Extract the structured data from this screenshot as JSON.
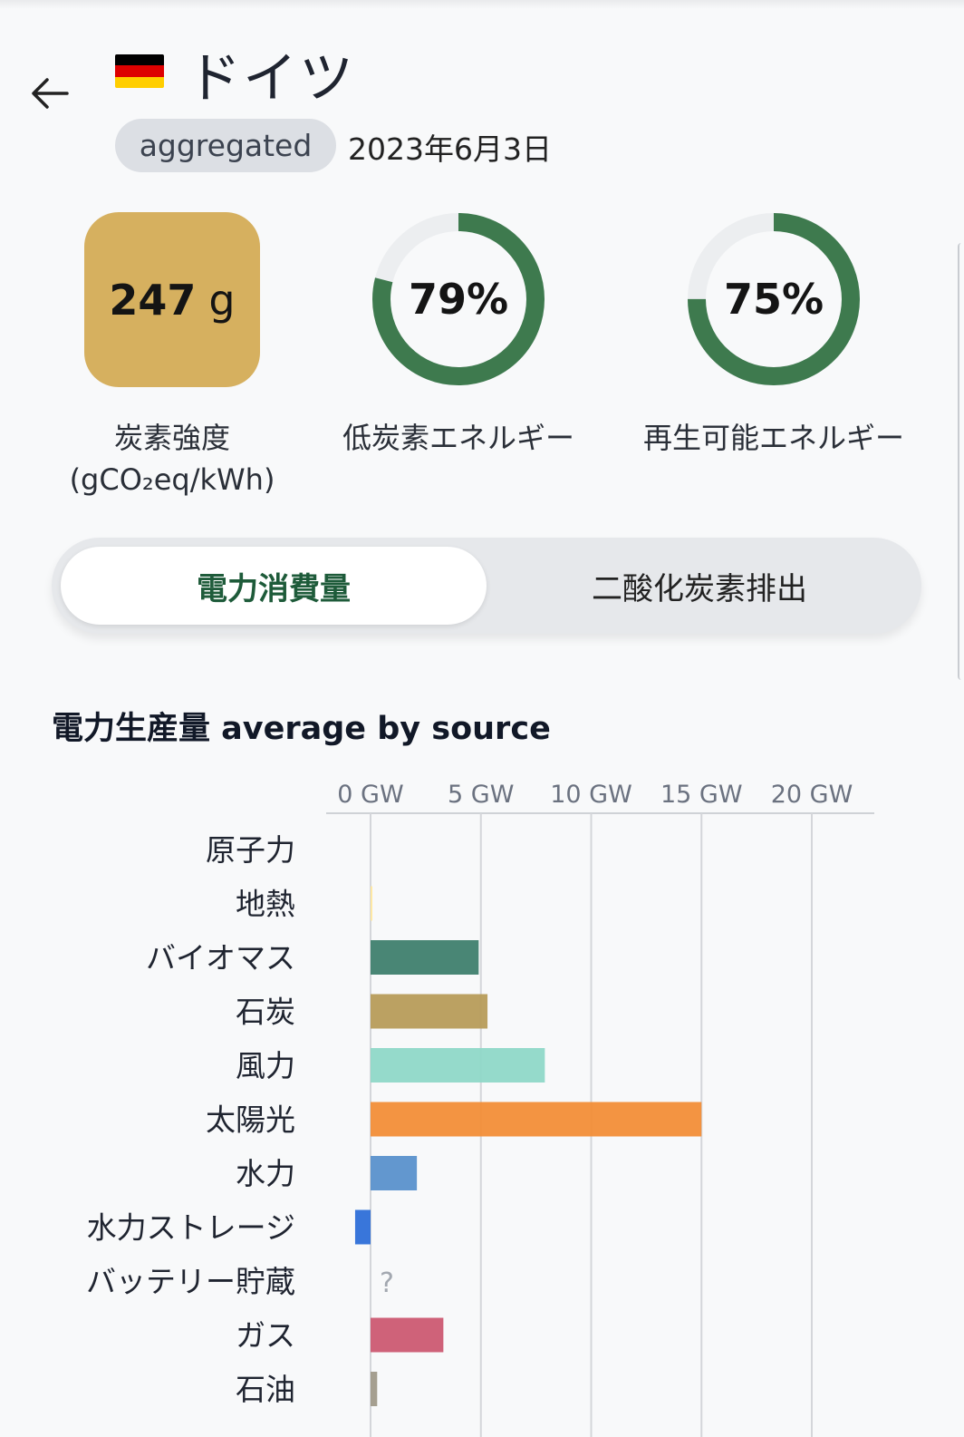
{
  "header": {
    "back_icon": "arrow-left-icon",
    "country": "ドイツ",
    "flag": {
      "icon": "germany-flag-icon",
      "colors": [
        "#000000",
        "#dd0000",
        "#ffce00"
      ]
    },
    "badge": "aggregated",
    "date": "2023年6月3日"
  },
  "metrics": {
    "carbon_intensity": {
      "value": "247",
      "unit": "g",
      "label": "炭素強度",
      "sublabel": "(gCO₂eq/kWh)",
      "color": "#d6b05f"
    },
    "low_carbon": {
      "percent": 79,
      "value_label": "79%",
      "label": "低炭素エネルギー"
    },
    "renewable": {
      "percent": 75,
      "value_label": "75%",
      "label": "再生可能エネルギー"
    },
    "ring_color": "#3e7a4e",
    "ring_track_color": "#eceef0"
  },
  "tabs": {
    "active": "電力消費量",
    "inactive": "二酸化炭素排出",
    "active_color": "#1e5b3a"
  },
  "section": {
    "title": "電力生産量 average by source"
  },
  "chart_data": {
    "type": "bar",
    "orientation": "horizontal",
    "title": "",
    "xlabel": "",
    "ylabel": "",
    "x_unit": "GW",
    "xlim": [
      -0.7,
      22.5
    ],
    "ticks": [
      0,
      5,
      10,
      15,
      20
    ],
    "tick_labels": [
      "0 GW",
      "5 GW",
      "10 GW",
      "15 GW",
      "20 GW"
    ],
    "grid": true,
    "categories": [
      "原子力",
      "地熱",
      "バイオマス",
      "石炭",
      "風力",
      "太陽光",
      "水力",
      "水力ストレージ",
      "バッテリー貯蔵",
      "ガス",
      "石油"
    ],
    "values": [
      0,
      0.03,
      4.9,
      5.3,
      7.9,
      15.0,
      2.1,
      -0.7,
      null,
      3.3,
      0.3
    ],
    "colors": [
      "#aec0c6",
      "#ffe8a0",
      "#3f7f6e",
      "#b79c5a",
      "#8fd8c8",
      "#f28e38",
      "#5a91cc",
      "#2e6fd8",
      "#bbbbbb",
      "#cc5a72",
      "#a09a8a"
    ],
    "missing_label": "?"
  }
}
